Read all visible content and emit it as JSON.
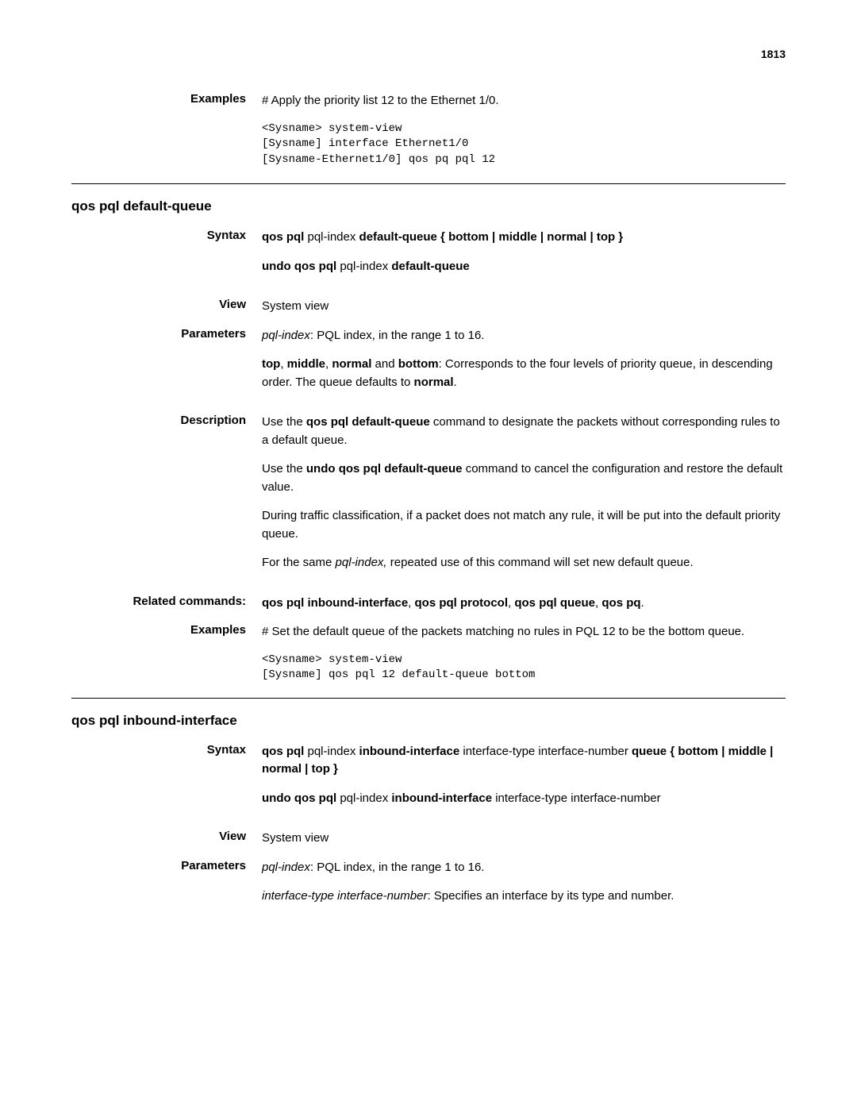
{
  "page_number": "1813",
  "examples1": {
    "label": "Examples",
    "text": "# Apply the priority list 12 to the Ethernet 1/0.",
    "code": "<Sysname> system-view\n[Sysname] interface Ethernet1/0\n[Sysname-Ethernet1/0] qos pq pql 12"
  },
  "sec1": {
    "heading": "qos pql default-queue",
    "syntax": {
      "label": "Syntax",
      "line1_prefix": "qos pql ",
      "line1_pqlindex": "pql-index",
      "line1_mid": " default-queue",
      "line1_rest": " { bottom | middle | normal | top }",
      "line2_prefix": "undo qos pql ",
      "line2_pqlindex": "pql-index",
      "line2_suffix": " default-queue"
    },
    "view": {
      "label": "View",
      "text": "System view"
    },
    "parameters": {
      "label": "Parameters",
      "p1_italic": "pql-index",
      "p1_rest": ": PQL index, in the range 1 to 16.",
      "p2_b1": "top",
      "p2_s1": ", ",
      "p2_b2": "middle",
      "p2_s2": ", ",
      "p2_b3": "normal",
      "p2_s3": " and ",
      "p2_b4": "bottom",
      "p2_s4": ": Corresponds to the four levels of priority queue, in descending order. The queue defaults to ",
      "p2_b5": "normal",
      "p2_s5": "."
    },
    "description": {
      "label": "Description",
      "d1_a": "Use the ",
      "d1_b": "qos pql default-queue",
      "d1_c": " command to designate the packets without corresponding rules to a default queue.",
      "d2_a": "Use the ",
      "d2_b": "undo qos pql default-queue",
      "d2_c": " command to cancel the configuration and restore the default value.",
      "d3": "During traffic classification, if a packet does not match any rule, it will be put into the default priority queue.",
      "d4_a": "For the same ",
      "d4_b": "pql-index,",
      "d4_c": " repeated use of this command will set new default queue."
    },
    "related": {
      "label": "Related commands:",
      "r_b1": "qos pql inbound-interface",
      "r_s1": ", ",
      "r_b2": "qos pql protocol",
      "r_s2": ", ",
      "r_b3": "qos pql queue",
      "r_s3": ", ",
      "r_b4": "qos pq",
      "r_s4": "."
    },
    "examples": {
      "label": "Examples",
      "text": "# Set the default queue of the packets matching no rules in PQL 12 to be the bottom queue.",
      "code": "<Sysname> system-view\n[Sysname] qos pql 12 default-queue bottom"
    }
  },
  "sec2": {
    "heading": "qos pql inbound-interface",
    "syntax": {
      "label": "Syntax",
      "l1_a": "qos pql ",
      "l1_b": "pql-index",
      "l1_c": " inbound-interface ",
      "l1_d": "interface-type interface-number",
      "l1_e": " queue",
      "l1_f": " { bottom | middle | normal | top }",
      "l2_a": "undo qos pql ",
      "l2_b": "pql-index",
      "l2_c": " inbound-interface ",
      "l2_d": "interface-type interface-number"
    },
    "view": {
      "label": "View",
      "text": "System view"
    },
    "parameters": {
      "label": "Parameters",
      "p1_italic": "pql-index",
      "p1_rest": ": PQL index, in the range 1 to 16.",
      "p2_italic": "interface-type interface-number",
      "p2_rest": ": Specifies an interface by its type and number."
    }
  }
}
